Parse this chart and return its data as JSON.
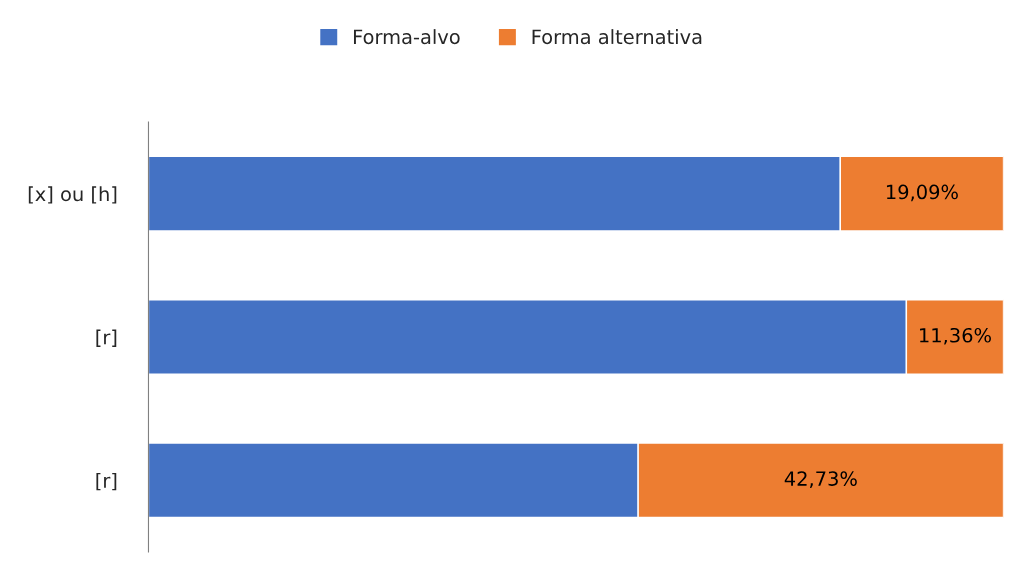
{
  "chart_data": {
    "type": "bar",
    "orientation": "horizontal",
    "stacked": true,
    "categories": [
      "[x] ou [h]",
      "[r]",
      "[r]"
    ],
    "series": [
      {
        "name": "Forma-alvo",
        "color": "#4472c4",
        "values": [
          80.91,
          88.64,
          57.27
        ],
        "value_labels": [
          null,
          null,
          null
        ]
      },
      {
        "name": "Forma alternativa",
        "color": "#ed7d31",
        "values": [
          19.09,
          11.36,
          42.73
        ],
        "value_labels": [
          "19,09%",
          "11,36%",
          "42,73%"
        ]
      }
    ],
    "legend": "top",
    "grid": false,
    "tick_labels": "y"
  }
}
